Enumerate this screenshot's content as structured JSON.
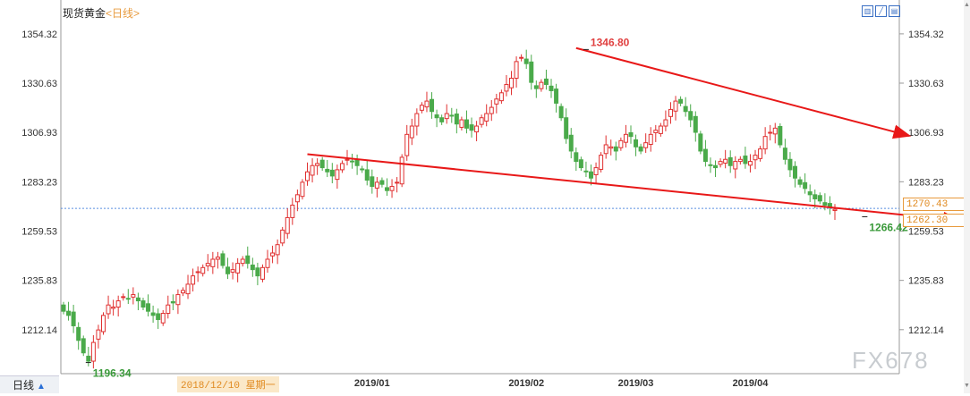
{
  "title": "现货黄金",
  "period": "<日线>",
  "period_button": "日线",
  "watermark": "FX678",
  "cursor_date": "2018/12/10  星期一",
  "current_price_box": "1270.43",
  "second_price_box": "1262.30",
  "chart_data": {
    "type": "candlestick",
    "title": "现货黄金",
    "y_ticks": [
      1354.32,
      1330.63,
      1306.93,
      1283.23,
      1259.53,
      1235.83,
      1212.14
    ],
    "ylim": [
      1191.0,
      1362.0
    ],
    "x_tick_labels": [
      "2018",
      "2019/01",
      "2019/02",
      "2019/03",
      "2019/04"
    ],
    "x_tick_positions_index": [
      28,
      62,
      93,
      115,
      138
    ],
    "current_price_line": 1270.43,
    "annotations": [
      {
        "label": "1346.80",
        "index": 105,
        "value": 1346.8,
        "color": "#e04040"
      },
      {
        "label": "1266.42",
        "index": 161,
        "value": 1266.42,
        "color": "#3a9a3a"
      },
      {
        "label": "1196.34",
        "index": 5,
        "value": 1196.34,
        "color": "#3a9a3a"
      }
    ],
    "trendlines": [
      {
        "name": "upper",
        "from": {
          "index": 103,
          "value": 1347.5
        },
        "to": {
          "index": 170,
          "value": 1305.3
        },
        "color": "#e81818"
      },
      {
        "name": "lower",
        "from": {
          "index": 49,
          "value": 1296.5
        },
        "to": {
          "index": 180,
          "value": 1264.6
        },
        "color": "#e81818"
      }
    ],
    "up_color": "#e03030",
    "down_color": "#4aaa4a",
    "series_close": [
      1221,
      1219,
      1214,
      1207,
      1201,
      1197,
      1206,
      1212,
      1219,
      1224,
      1223,
      1226,
      1228,
      1227,
      1229,
      1226,
      1223,
      1221,
      1219,
      1217,
      1220,
      1224,
      1225,
      1229,
      1231,
      1234,
      1238,
      1240,
      1242,
      1244,
      1246,
      1247,
      1243,
      1239,
      1241,
      1244,
      1246,
      1244,
      1241,
      1238,
      1242,
      1246,
      1249,
      1253,
      1260,
      1266,
      1272,
      1277,
      1283,
      1288,
      1291,
      1292,
      1290,
      1288,
      1286,
      1289,
      1292,
      1294,
      1293,
      1291,
      1289,
      1284,
      1281,
      1283,
      1282,
      1279,
      1281,
      1283,
      1295,
      1306,
      1310,
      1316,
      1320,
      1322,
      1317,
      1314,
      1312,
      1316,
      1315,
      1311,
      1313,
      1309,
      1308,
      1310,
      1314,
      1316,
      1319,
      1323,
      1326,
      1330,
      1333,
      1341,
      1343,
      1340,
      1331,
      1328,
      1331,
      1330,
      1327,
      1321,
      1314,
      1304,
      1298,
      1293,
      1290,
      1288,
      1285,
      1290,
      1296,
      1301,
      1300,
      1298,
      1303,
      1306,
      1305,
      1300,
      1298,
      1302,
      1306,
      1308,
      1310,
      1313,
      1318,
      1322,
      1321,
      1317,
      1313,
      1307,
      1298,
      1293,
      1291,
      1290,
      1293,
      1294,
      1291,
      1293,
      1294,
      1292,
      1293,
      1296,
      1299,
      1305,
      1307,
      1309,
      1301,
      1294,
      1289,
      1285,
      1282,
      1280,
      1277,
      1275,
      1274,
      1272,
      1271,
      1270
    ]
  }
}
